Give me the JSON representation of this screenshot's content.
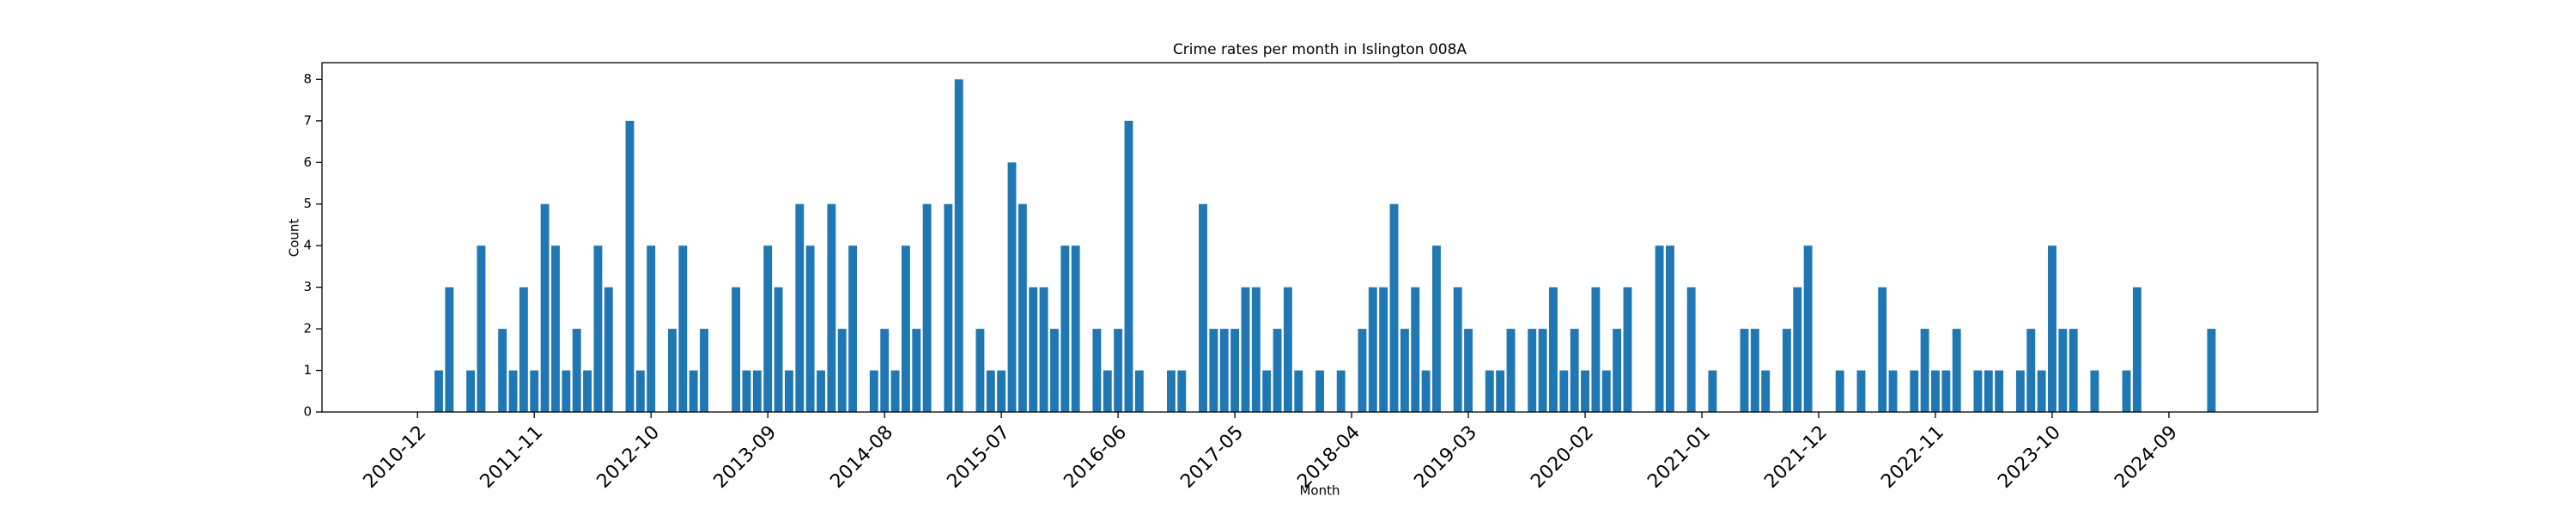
{
  "chart_data": {
    "type": "bar",
    "title": "Crime rates per month in Islington 008A",
    "xlabel": "Month",
    "ylabel": "Count",
    "color": "#1f77b4",
    "x": [
      "2011-02",
      "2011-03",
      "2011-05",
      "2011-06",
      "2011-08",
      "2011-09",
      "2011-10",
      "2011-11",
      "2011-12",
      "2012-01",
      "2012-02",
      "2012-03",
      "2012-04",
      "2012-05",
      "2012-06",
      "2012-08",
      "2012-09",
      "2012-10",
      "2012-12",
      "2013-01",
      "2013-02",
      "2013-03",
      "2013-06",
      "2013-07",
      "2013-08",
      "2013-09",
      "2013-10",
      "2013-11",
      "2013-12",
      "2014-01",
      "2014-02",
      "2014-03",
      "2014-04",
      "2014-05",
      "2014-07",
      "2014-08",
      "2014-09",
      "2014-10",
      "2014-11",
      "2014-12",
      "2015-02",
      "2015-03",
      "2015-05",
      "2015-06",
      "2015-07",
      "2015-08",
      "2015-09",
      "2015-10",
      "2015-11",
      "2015-12",
      "2016-01",
      "2016-02",
      "2016-04",
      "2016-05",
      "2016-06",
      "2016-07",
      "2016-08",
      "2016-11",
      "2016-12",
      "2017-02",
      "2017-03",
      "2017-04",
      "2017-05",
      "2017-06",
      "2017-07",
      "2017-08",
      "2017-09",
      "2017-10",
      "2017-11",
      "2018-01",
      "2018-03",
      "2018-05",
      "2018-06",
      "2018-07",
      "2018-08",
      "2018-09",
      "2018-10",
      "2018-11",
      "2018-12",
      "2019-02",
      "2019-03",
      "2019-05",
      "2019-06",
      "2019-07",
      "2019-09",
      "2019-10",
      "2019-11",
      "2019-12",
      "2020-01",
      "2020-02",
      "2020-03",
      "2020-04",
      "2020-05",
      "2020-06",
      "2020-09",
      "2020-10",
      "2020-12",
      "2021-02",
      "2021-05",
      "2021-06",
      "2021-07",
      "2021-09",
      "2021-10",
      "2021-11",
      "2022-02",
      "2022-04",
      "2022-06",
      "2022-07",
      "2022-09",
      "2022-10",
      "2022-11",
      "2022-12",
      "2023-01",
      "2023-03",
      "2023-04",
      "2023-05",
      "2023-07",
      "2023-08",
      "2023-09",
      "2023-10",
      "2023-11",
      "2023-12",
      "2024-02",
      "2024-05",
      "2024-06",
      "2025-01"
    ],
    "values": [
      1,
      3,
      1,
      4,
      2,
      1,
      3,
      1,
      5,
      4,
      1,
      2,
      1,
      4,
      3,
      7,
      1,
      4,
      2,
      4,
      1,
      2,
      3,
      1,
      1,
      4,
      3,
      1,
      5,
      4,
      1,
      5,
      2,
      4,
      1,
      2,
      1,
      4,
      2,
      5,
      5,
      8,
      2,
      1,
      1,
      6,
      5,
      3,
      3,
      2,
      4,
      4,
      2,
      1,
      2,
      7,
      1,
      1,
      1,
      5,
      2,
      2,
      2,
      3,
      3,
      1,
      2,
      3,
      1,
      1,
      1,
      2,
      3,
      3,
      5,
      2,
      3,
      1,
      4,
      3,
      2,
      1,
      1,
      2,
      2,
      2,
      3,
      1,
      2,
      1,
      3,
      1,
      2,
      3,
      4,
      4,
      3,
      1,
      2,
      2,
      1,
      2,
      3,
      4,
      1,
      1,
      3,
      1,
      1,
      2,
      1,
      1,
      2,
      1,
      1,
      1,
      1,
      2,
      1,
      4,
      2,
      2,
      1,
      1,
      3,
      2
    ],
    "xlim": [
      "2010-03",
      "2025-11"
    ],
    "xticks": [
      "2010-12",
      "2011-11",
      "2012-10",
      "2013-09",
      "2014-08",
      "2015-07",
      "2016-06",
      "2017-05",
      "2018-04",
      "2019-03",
      "2020-02",
      "2021-01",
      "2021-12",
      "2022-11",
      "2023-10",
      "2024-09"
    ],
    "ylim": [
      0,
      8.4
    ],
    "yticks": [
      0,
      1,
      2,
      3,
      4,
      5,
      6,
      7,
      8
    ]
  }
}
